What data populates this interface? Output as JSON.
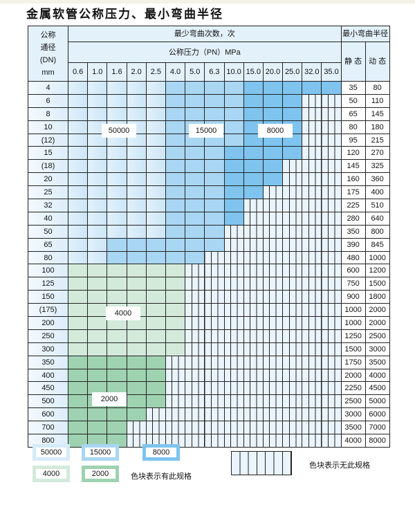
{
  "title": "金属软管公称压力、最小弯曲半径",
  "header": {
    "dn_label": [
      "公称",
      "通径",
      "(DN)",
      "mm"
    ],
    "bend_count": "最少弯曲次数，次",
    "pressure": "公称压力（PN）MPa",
    "min_radius": "最小弯曲半径",
    "static": "静 态",
    "dynamic": "动 态",
    "pressures": [
      "0.6",
      "1.0",
      "1.6",
      "2.0",
      "2.5",
      "4.0",
      "5.0",
      "6.3",
      "10.0",
      "15.0",
      "20.0",
      "25.0",
      "32.0",
      "35.0"
    ]
  },
  "rows": [
    {
      "dn": "4",
      "fill": "aaaaabbbbccccc",
      "static": "35",
      "dynamic": "80"
    },
    {
      "dn": "6",
      "fill": "aaaaabbbbcccnn",
      "static": "50",
      "dynamic": "110"
    },
    {
      "dn": "8",
      "fill": "aaaaabbbbcccnn",
      "static": "65",
      "dynamic": "145"
    },
    {
      "dn": "10",
      "fill": "aaaaabbbbcccnn",
      "static": "80",
      "dynamic": "180"
    },
    {
      "dn": "(12)",
      "fill": "aaaaabbbbcccnn",
      "static": "95",
      "dynamic": "215"
    },
    {
      "dn": "15",
      "fill": "aaaaabbbccccnn",
      "static": "120",
      "dynamic": "270"
    },
    {
      "dn": "(18)",
      "fill": "aaaaabbbcccnnn",
      "static": "145",
      "dynamic": "325"
    },
    {
      "dn": "20",
      "fill": "aaaaabbbcccnnn",
      "static": "160",
      "dynamic": "360"
    },
    {
      "dn": "25",
      "fill": "aaaaabbbccnnnn",
      "static": "175",
      "dynamic": "400"
    },
    {
      "dn": "32",
      "fill": "aaaaabbbcnnnnn",
      "static": "225",
      "dynamic": "510"
    },
    {
      "dn": "40",
      "fill": "aaaaabbbcnnnnn",
      "static": "280",
      "dynamic": "640"
    },
    {
      "dn": "50",
      "fill": "aaaaabbbnnnnnn",
      "static": "350",
      "dynamic": "800"
    },
    {
      "dn": "65",
      "fill": "aabbbbbbnnnnnn",
      "static": "390",
      "dynamic": "845"
    },
    {
      "dn": "80",
      "fill": "aabbbbbnnnnnnn",
      "static": "480",
      "dynamic": "1000"
    },
    {
      "dn": "100",
      "fill": "ggggggnnnnnnnn",
      "static": "600",
      "dynamic": "1200"
    },
    {
      "dn": "125",
      "fill": "ggggggnnnnnnnn",
      "static": "750",
      "dynamic": "1500"
    },
    {
      "dn": "150",
      "fill": "ggggggnnnnnnnn",
      "static": "900",
      "dynamic": "1800"
    },
    {
      "dn": "(175)",
      "fill": "ggggggnnnnnnnn",
      "static": "1000",
      "dynamic": "2000"
    },
    {
      "dn": "200",
      "fill": "ggggggnnnnnnnn",
      "static": "1000",
      "dynamic": "2000"
    },
    {
      "dn": "250",
      "fill": "ggggggnnnnnnnn",
      "static": "1250",
      "dynamic": "2500"
    },
    {
      "dn": "300",
      "fill": "ggggggnnnnnnnn",
      "static": "1500",
      "dynamic": "3000"
    },
    {
      "dn": "350",
      "fill": "hhhhhnnnnnnnnn",
      "static": "1750",
      "dynamic": "3500"
    },
    {
      "dn": "400",
      "fill": "hhhhhnnnnnnnnn",
      "static": "2000",
      "dynamic": "4000"
    },
    {
      "dn": "450",
      "fill": "hhhhhnnnnnnnnn",
      "static": "2250",
      "dynamic": "4500"
    },
    {
      "dn": "500",
      "fill": "hhhhhnnnnnnnnn",
      "static": "2500",
      "dynamic": "5000"
    },
    {
      "dn": "600",
      "fill": "hhhhnnnnnnnnnn",
      "static": "3000",
      "dynamic": "6000"
    },
    {
      "dn": "700",
      "fill": "hhhnnnnnnnnnnn",
      "static": "3500",
      "dynamic": "7000"
    },
    {
      "dn": "800",
      "fill": "hhhnnnnnnnnnnn",
      "static": "4000",
      "dynamic": "8000"
    }
  ],
  "region_labels": {
    "a": "50000",
    "b": "15000",
    "c": "8000",
    "g": "4000",
    "h": "2000"
  },
  "colors": {
    "a": "#d6ebf9",
    "b": "#a9d6f3",
    "c": "#7ec4ee",
    "g": "#d3eadb",
    "h": "#9fd2b1",
    "n": "#eaf4fc"
  },
  "legend": {
    "items": [
      "50000",
      "15000",
      "8000",
      "4000",
      "2000"
    ],
    "has_spec": "色块表示有此规格",
    "no_spec": "色块表示无此规格"
  }
}
